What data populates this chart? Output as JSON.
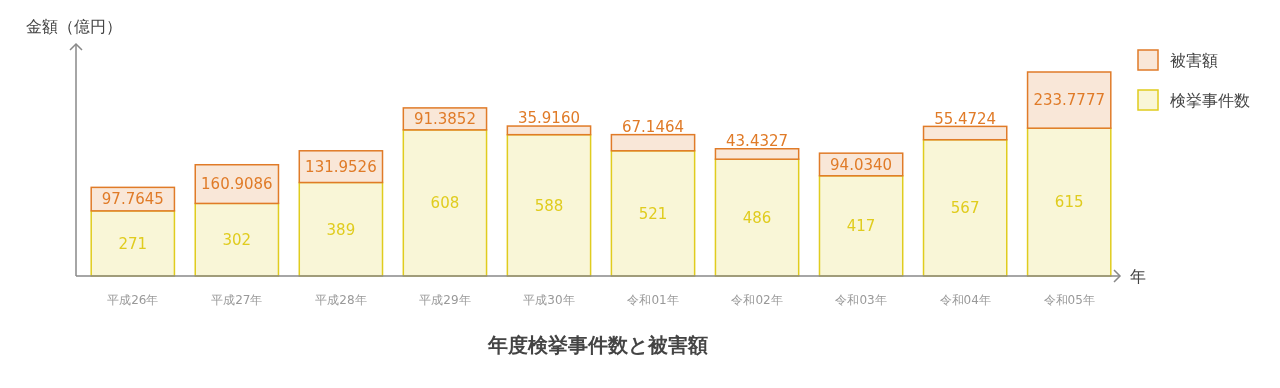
{
  "chart_data": {
    "type": "bar",
    "title": "年度検挙事件数と被害額",
    "xlabel": "年",
    "ylabel": "金額（億円）",
    "categories": [
      "平成26年",
      "平成27年",
      "平成28年",
      "平成29年",
      "平成30年",
      "令和01年",
      "令和02年",
      "令和03年",
      "令和04年",
      "令和05年"
    ],
    "stacked": true,
    "legend": "top right",
    "series": [
      {
        "name": "検挙事件数",
        "color": "#e0cc1e",
        "values": [
          271,
          302,
          389,
          608,
          588,
          521,
          486,
          417,
          567,
          615
        ],
        "value_labels": [
          "271",
          "302",
          "389",
          "608",
          "588",
          "521",
          "486",
          "417",
          "567",
          "615"
        ]
      },
      {
        "name": "被害額",
        "color": "#e07b28",
        "values": [
          97.7645,
          160.9086,
          131.9526,
          91.3852,
          35.916,
          67.1464,
          43.4327,
          94.034,
          55.4724,
          233.7777
        ],
        "value_labels": [
          "97.7645",
          "160.9086",
          "131.9526",
          "91.3852",
          "35.9160",
          "67.1464",
          "43.4327",
          "94.0340",
          "55.4724",
          "233.7777"
        ]
      }
    ]
  }
}
